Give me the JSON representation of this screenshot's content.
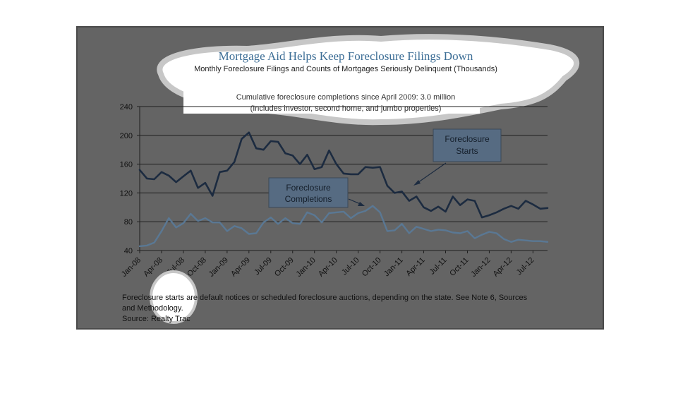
{
  "chart_data": {
    "type": "line",
    "title": "Mortgage Aid Helps Keep Foreclosure Filings Down",
    "subtitle": "Monthly Foreclosure Filings and Counts of Mortgages Seriously Delinquent (Thousands)",
    "note_line1": "Cumulative foreclosure completions since April 2009: 3.0 million",
    "note_line2": "(Includes investor, second home, and jumbo properties)",
    "ylim": [
      40,
      240
    ],
    "yticks": [
      "240",
      "200",
      "160",
      "120",
      "80",
      "40"
    ],
    "x_tick_labels": [
      "Jan-08",
      "Apr-08",
      "Jul-08",
      "Oct-08",
      "Jan-09",
      "Apr-09",
      "Jul-09",
      "Oct-09",
      "Jan-10",
      "Apr-10",
      "Jul-10",
      "Oct-10",
      "Jan-11",
      "Apr-11",
      "Jul-11",
      "Oct-11",
      "Jan-12",
      "Apr-12",
      "Jul-12"
    ],
    "series": [
      {
        "name": "Foreclosure Starts",
        "color": "#1c2b40",
        "values": [
          152,
          140,
          139,
          149,
          144,
          135,
          143,
          151,
          127,
          134,
          116,
          149,
          151,
          163,
          195,
          204,
          182,
          180,
          192,
          191,
          175,
          172,
          160,
          173,
          153,
          156,
          179,
          160,
          147,
          146,
          146,
          156,
          155,
          156,
          130,
          120,
          122,
          109,
          115,
          100,
          95,
          101,
          94,
          115,
          103,
          111,
          109,
          86,
          89,
          93,
          98,
          102,
          98,
          109,
          104,
          98,
          99
        ]
      },
      {
        "name": "Foreclosure Completions",
        "color": "#5a7894",
        "values": [
          46,
          47,
          51,
          67,
          85,
          72,
          78,
          91,
          81,
          85,
          79,
          79,
          67,
          74,
          71,
          63,
          64,
          79,
          86,
          77,
          85,
          78,
          77,
          93,
          89,
          79,
          92,
          93,
          94,
          85,
          92,
          95,
          102,
          93,
          67,
          68,
          77,
          64,
          73,
          70,
          67,
          69,
          68,
          65,
          64,
          67,
          57,
          62,
          66,
          64,
          56,
          52,
          55,
          54,
          53,
          53,
          52
        ]
      }
    ],
    "annotations": {
      "starts_label": [
        "Foreclosure",
        "Starts"
      ],
      "completions_label": [
        "Foreclosure",
        "Completions"
      ]
    },
    "footer": {
      "line1": "Foreclosure starts are default notices or scheduled foreclosure auctions, depending on the state. See Note 6, Sources",
      "line2": "and Methodology.",
      "line3": "Source: Realty Trac"
    },
    "grid": true,
    "legend": "callouts"
  }
}
